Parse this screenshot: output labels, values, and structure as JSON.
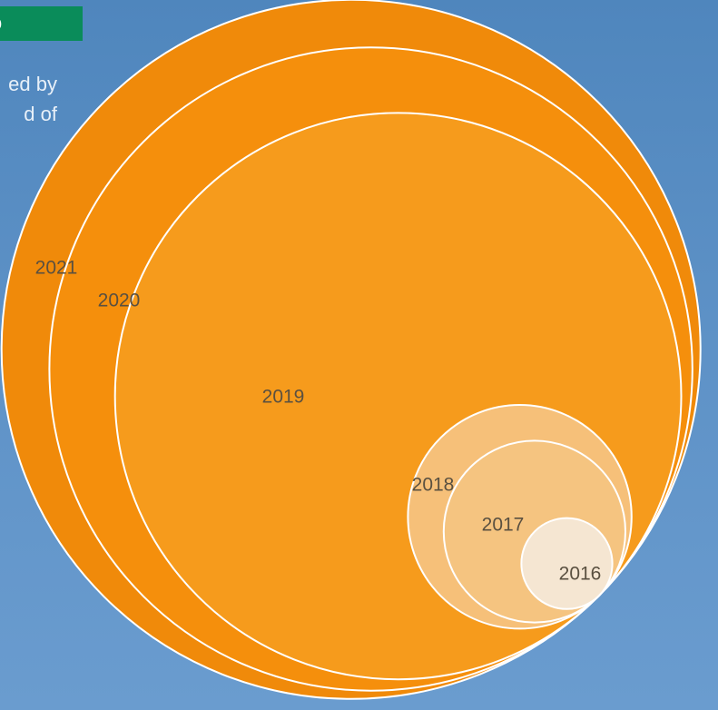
{
  "tag": {
    "text": "b",
    "color": "#0a8c5a"
  },
  "intro": {
    "lines": [
      "ed by",
      "d of"
    ]
  },
  "chart_data": {
    "type": "bubble",
    "title": "",
    "xlabel": "",
    "ylabel": "",
    "series": [
      {
        "name": "2021",
        "relative_size": 1.0,
        "color": "#f08a0a"
      },
      {
        "name": "2020",
        "relative_size": 0.92,
        "color": "#f58f0c"
      },
      {
        "name": "2019",
        "relative_size": 0.81,
        "color": "#f69b1c"
      },
      {
        "name": "2018",
        "relative_size": 0.32,
        "color": "#f6c079"
      },
      {
        "name": "2017",
        "relative_size": 0.26,
        "color": "#f5c480"
      },
      {
        "name": "2016",
        "relative_size": 0.13,
        "color": "#f5e6d2"
      }
    ]
  }
}
